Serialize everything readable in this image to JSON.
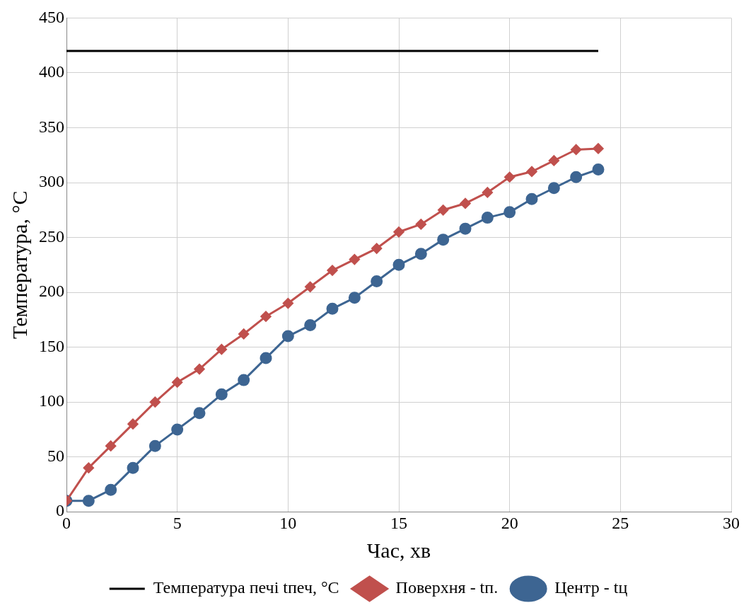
{
  "chart_data": {
    "type": "line",
    "xlabel": "Час, хв",
    "ylabel": "Температура, °C",
    "xlim": [
      0,
      30
    ],
    "xticks": [
      0,
      5,
      10,
      15,
      20,
      25,
      30
    ],
    "ylim": [
      0,
      450
    ],
    "yticks": [
      0,
      50,
      100,
      150,
      200,
      250,
      300,
      350,
      400,
      450
    ],
    "grid": true,
    "legend": "bottom",
    "series": [
      {
        "name": "Температура печі tпеч, °C",
        "color": "#000000",
        "marker": "none",
        "x": [
          0,
          24
        ],
        "values": [
          420,
          420
        ]
      },
      {
        "name": "Поверхня - tп.",
        "color": "#c0504d",
        "marker": "diamond",
        "x": [
          0,
          1,
          2,
          3,
          4,
          5,
          6,
          7,
          8,
          9,
          10,
          11,
          12,
          13,
          14,
          15,
          16,
          17,
          18,
          19,
          20,
          21,
          22,
          23,
          24
        ],
        "values": [
          10,
          40,
          60,
          80,
          100,
          118,
          130,
          148,
          162,
          178,
          190,
          205,
          220,
          230,
          240,
          255,
          262,
          275,
          281,
          291,
          305,
          310,
          320,
          330,
          331
        ]
      },
      {
        "name": "Центр - tц",
        "color": "#3d6592",
        "marker": "circle",
        "x": [
          0,
          1,
          2,
          3,
          4,
          5,
          6,
          7,
          8,
          9,
          10,
          11,
          12,
          13,
          14,
          15,
          16,
          17,
          18,
          19,
          20,
          21,
          22,
          23,
          24
        ],
        "values": [
          10,
          10,
          20,
          40,
          60,
          75,
          90,
          107,
          120,
          140,
          160,
          170,
          185,
          195,
          210,
          225,
          235,
          248,
          258,
          268,
          273,
          285,
          295,
          305,
          312
        ]
      }
    ]
  }
}
